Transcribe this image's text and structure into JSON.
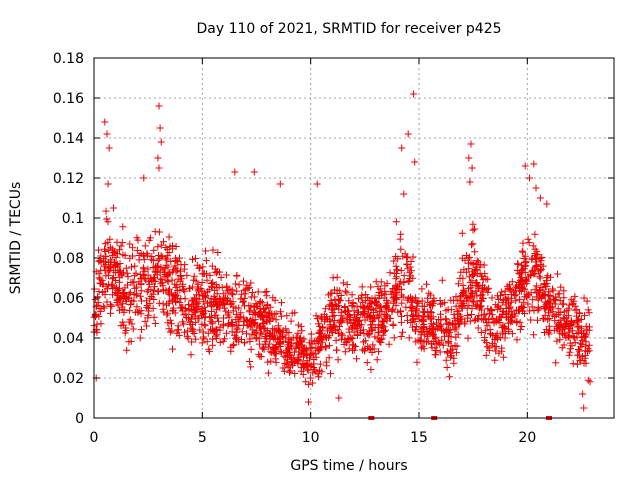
{
  "chart_data": {
    "type": "scatter",
    "title": "Day 110 of 2021, SRMTID for receiver p425",
    "xlabel": "GPS time / hours",
    "ylabel": "SRMTID / TECUs",
    "xlim": [
      0,
      24
    ],
    "ylim": [
      0,
      0.18
    ],
    "x_ticks": [
      0,
      5,
      10,
      15,
      20
    ],
    "x_tick_labels": [
      "0",
      "5",
      "10",
      "15",
      "20"
    ],
    "y_ticks": [
      0,
      0.02,
      0.04,
      0.06,
      0.08,
      0.1,
      0.12,
      0.14,
      0.16,
      0.18
    ],
    "y_tick_labels": [
      "0",
      "0.02",
      "0.04",
      "0.06",
      "0.08",
      "0.1",
      "0.12",
      "0.14",
      "0.16",
      "0.18"
    ],
    "grid": true,
    "marker": "+",
    "series_color": "#ee0000",
    "data_gap_markers_x": [
      12.8,
      15.7,
      21.0
    ],
    "profile": [
      [
        0.0,
        0.055,
        0.015
      ],
      [
        0.5,
        0.075,
        0.02
      ],
      [
        1.0,
        0.07,
        0.02
      ],
      [
        1.5,
        0.06,
        0.018
      ],
      [
        2.0,
        0.07,
        0.02
      ],
      [
        2.5,
        0.065,
        0.02
      ],
      [
        3.0,
        0.075,
        0.02
      ],
      [
        3.5,
        0.065,
        0.018
      ],
      [
        4.0,
        0.06,
        0.018
      ],
      [
        4.5,
        0.055,
        0.017
      ],
      [
        5.0,
        0.06,
        0.02
      ],
      [
        5.5,
        0.058,
        0.018
      ],
      [
        6.0,
        0.055,
        0.018
      ],
      [
        6.5,
        0.052,
        0.017
      ],
      [
        7.0,
        0.05,
        0.017
      ],
      [
        7.5,
        0.05,
        0.016
      ],
      [
        8.0,
        0.045,
        0.015
      ],
      [
        8.5,
        0.04,
        0.014
      ],
      [
        9.0,
        0.035,
        0.012
      ],
      [
        9.5,
        0.032,
        0.011
      ],
      [
        10.0,
        0.03,
        0.011
      ],
      [
        10.5,
        0.04,
        0.013
      ],
      [
        11.0,
        0.05,
        0.015
      ],
      [
        11.5,
        0.05,
        0.015
      ],
      [
        12.0,
        0.048,
        0.014
      ],
      [
        12.5,
        0.05,
        0.015
      ],
      [
        13.0,
        0.05,
        0.015
      ],
      [
        13.5,
        0.055,
        0.016
      ],
      [
        14.0,
        0.065,
        0.02
      ],
      [
        14.5,
        0.065,
        0.022
      ],
      [
        15.0,
        0.045,
        0.015
      ],
      [
        15.5,
        0.05,
        0.015
      ],
      [
        16.0,
        0.045,
        0.015
      ],
      [
        16.5,
        0.04,
        0.014
      ],
      [
        17.0,
        0.06,
        0.018
      ],
      [
        17.5,
        0.07,
        0.02
      ],
      [
        18.0,
        0.055,
        0.018
      ],
      [
        18.5,
        0.045,
        0.015
      ],
      [
        19.0,
        0.05,
        0.016
      ],
      [
        19.5,
        0.06,
        0.018
      ],
      [
        20.0,
        0.07,
        0.02
      ],
      [
        20.5,
        0.07,
        0.02
      ],
      [
        21.0,
        0.055,
        0.017
      ],
      [
        21.5,
        0.05,
        0.016
      ],
      [
        22.0,
        0.045,
        0.015
      ],
      [
        22.5,
        0.04,
        0.015
      ],
      [
        22.9,
        0.04,
        0.015
      ]
    ],
    "outliers": [
      [
        0.1,
        0.02
      ],
      [
        0.5,
        0.148
      ],
      [
        0.6,
        0.142
      ],
      [
        0.7,
        0.135
      ],
      [
        0.65,
        0.117
      ],
      [
        0.9,
        0.105
      ],
      [
        3.0,
        0.156
      ],
      [
        3.05,
        0.145
      ],
      [
        3.1,
        0.138
      ],
      [
        2.95,
        0.13
      ],
      [
        3.0,
        0.125
      ],
      [
        2.3,
        0.12
      ],
      [
        6.5,
        0.123
      ],
      [
        7.4,
        0.123
      ],
      [
        8.6,
        0.117
      ],
      [
        10.3,
        0.117
      ],
      [
        14.75,
        0.162
      ],
      [
        14.5,
        0.142
      ],
      [
        14.2,
        0.135
      ],
      [
        14.8,
        0.128
      ],
      [
        14.3,
        0.112
      ],
      [
        17.4,
        0.137
      ],
      [
        17.3,
        0.13
      ],
      [
        17.45,
        0.125
      ],
      [
        17.35,
        0.118
      ],
      [
        19.9,
        0.126
      ],
      [
        20.3,
        0.127
      ],
      [
        20.1,
        0.12
      ],
      [
        20.4,
        0.115
      ],
      [
        20.6,
        0.11
      ],
      [
        20.9,
        0.107
      ],
      [
        22.6,
        0.005
      ],
      [
        22.55,
        0.012
      ],
      [
        9.9,
        0.008
      ],
      [
        11.3,
        0.01
      ]
    ]
  }
}
